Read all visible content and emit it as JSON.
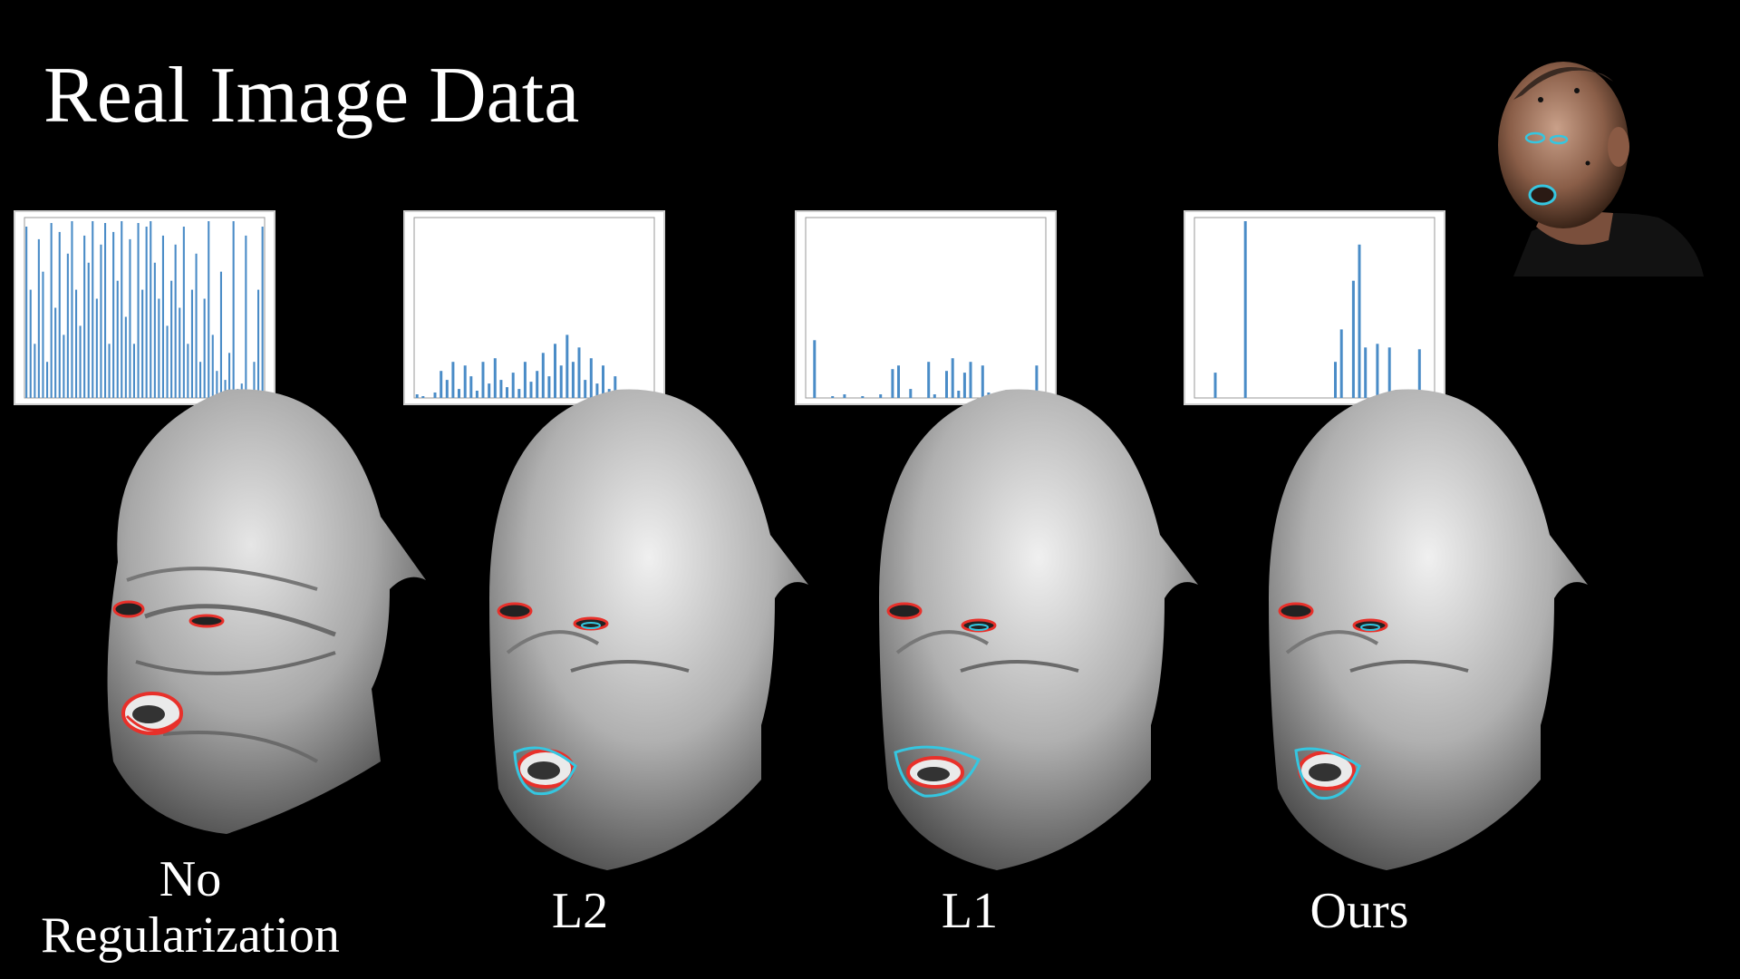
{
  "slide": {
    "title": "Real Image Data"
  },
  "panels": [
    {
      "caption_line1": "No",
      "caption_line2": "Regularization",
      "bars": [
        0.95,
        0.6,
        0.3,
        0.88,
        0.7,
        0.2,
        0.97,
        0.5,
        0.92,
        0.35,
        0.8,
        0.98,
        0.6,
        0.4,
        0.9,
        0.75,
        0.98,
        0.55,
        0.85,
        0.97,
        0.3,
        0.92,
        0.65,
        0.98,
        0.45,
        0.88,
        0.3,
        0.97,
        0.6,
        0.95,
        0.98,
        0.75,
        0.55,
        0.9,
        0.4,
        0.65,
        0.85,
        0.5,
        0.95,
        0.3,
        0.6,
        0.8,
        0.2,
        0.55,
        0.98,
        0.35,
        0.15,
        0.7,
        0.1,
        0.25,
        0.98,
        0.05,
        0.08,
        0.9,
        0.02,
        0.2,
        0.6,
        0.95
      ]
    },
    {
      "caption_line1": "L2",
      "caption_line2": "",
      "bars": [
        0.02,
        0.01,
        0.0,
        0.03,
        0.15,
        0.1,
        0.2,
        0.05,
        0.18,
        0.12,
        0.04,
        0.2,
        0.08,
        0.22,
        0.1,
        0.06,
        0.14,
        0.05,
        0.2,
        0.09,
        0.15,
        0.25,
        0.12,
        0.3,
        0.18,
        0.35,
        0.2,
        0.28,
        0.1,
        0.22,
        0.08,
        0.18,
        0.05,
        0.12,
        0.03,
        0.0,
        0.02,
        0.01,
        0.0,
        0.03
      ]
    },
    {
      "caption_line1": "L1",
      "caption_line2": "",
      "bars": [
        0.0,
        0.32,
        0.0,
        0.0,
        0.01,
        0.0,
        0.02,
        0.0,
        0.0,
        0.01,
        0.0,
        0.0,
        0.02,
        0.0,
        0.16,
        0.18,
        0.0,
        0.05,
        0.0,
        0.0,
        0.2,
        0.02,
        0.0,
        0.15,
        0.22,
        0.04,
        0.14,
        0.2,
        0.0,
        0.18,
        0.03,
        0.0,
        0.02,
        0.0,
        0.0,
        0.01,
        0.0,
        0.0,
        0.18,
        0.0
      ]
    },
    {
      "caption_line1": "Ours",
      "caption_line2": "",
      "bars": [
        0.0,
        0.0,
        0.0,
        0.14,
        0.0,
        0.0,
        0.0,
        0.0,
        0.98,
        0.0,
        0.0,
        0.0,
        0.0,
        0.0,
        0.0,
        0.0,
        0.0,
        0.0,
        0.0,
        0.0,
        0.0,
        0.0,
        0.0,
        0.2,
        0.38,
        0.0,
        0.65,
        0.85,
        0.28,
        0.0,
        0.3,
        0.0,
        0.28,
        0.0,
        0.0,
        0.0,
        0.0,
        0.27,
        0.0,
        0.0
      ]
    }
  ],
  "colors": {
    "background": "#000000",
    "bar": "#4a8cc7",
    "fit_red": "#e8302a",
    "fit_cyan": "#35c6e0"
  },
  "icons": {
    "thumbnail": "actor-photo-with-landmarks"
  }
}
